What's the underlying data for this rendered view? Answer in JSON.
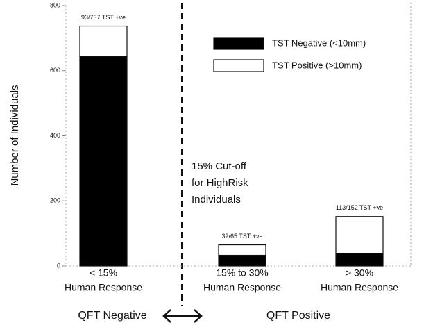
{
  "chart_data": {
    "type": "stacked_bar",
    "y_label": "Number of Individuals",
    "categories": [
      "< 15%",
      "15% to 30%",
      "> 30%"
    ],
    "category_sublabels": [
      "Human Response",
      "Human Response",
      "Human Response"
    ],
    "series": [
      {
        "name": "TST Negative (<10mm)",
        "color": "#000000",
        "values": [
          644,
          33,
          39
        ]
      },
      {
        "name": "TST Positive (>10mm)",
        "color": "#ffffff",
        "values": [
          93,
          32,
          113
        ]
      }
    ],
    "bar_labels": [
      "93/737 TST +ve",
      "32/65 TST +ve",
      "113/152 TST +ve"
    ],
    "ylim": [
      0,
      800
    ],
    "yticks": [
      0,
      200,
      400,
      600,
      800
    ],
    "annotation": [
      "15% Cut-off",
      "for HighRisk",
      "Individuals"
    ],
    "group_labels": [
      "QFT Negative",
      "QFT Positive"
    ],
    "legend": "upper right"
  }
}
